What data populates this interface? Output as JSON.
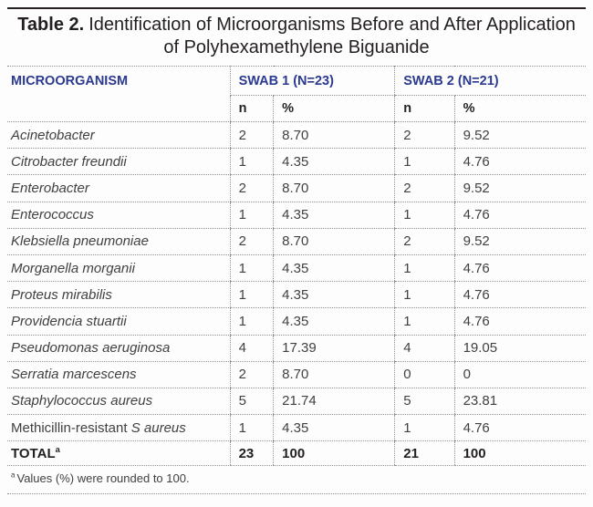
{
  "title": {
    "label": "Table 2.",
    "text": "Identification of Microorganisms Before and After Application of Polyhexamethylene Biguanide"
  },
  "colors": {
    "header_navy": "#2b3990",
    "body_text": "#414042",
    "title_black": "#231f20",
    "border_dotted_gray": "#8f8f8f",
    "background": "#fdfdfd"
  },
  "table": {
    "header": {
      "microorganism": "MICROORGANISM",
      "swab1": "SWAB 1 (N=23)",
      "swab2": "SWAB 2 (N=21)",
      "n": "n",
      "pct": "%"
    },
    "rows": [
      {
        "name_regular": "",
        "name_italic": "Acinetobacter",
        "s1n": "2",
        "s1p": "8.70",
        "s2n": "2",
        "s2p": "9.52"
      },
      {
        "name_regular": "",
        "name_italic": "Citrobacter freundii",
        "s1n": "1",
        "s1p": "4.35",
        "s2n": "1",
        "s2p": "4.76"
      },
      {
        "name_regular": "",
        "name_italic": "Enterobacter",
        "s1n": "2",
        "s1p": "8.70",
        "s2n": "2",
        "s2p": "9.52"
      },
      {
        "name_regular": "",
        "name_italic": "Enterococcus",
        "s1n": "1",
        "s1p": "4.35",
        "s2n": "1",
        "s2p": "4.76"
      },
      {
        "name_regular": "",
        "name_italic": "Klebsiella pneumoniae",
        "s1n": "2",
        "s1p": "8.70",
        "s2n": "2",
        "s2p": "9.52"
      },
      {
        "name_regular": "",
        "name_italic": "Morganella morganii",
        "s1n": "1",
        "s1p": "4.35",
        "s2n": "1",
        "s2p": "4.76"
      },
      {
        "name_regular": "",
        "name_italic": "Proteus mirabilis",
        "s1n": "1",
        "s1p": "4.35",
        "s2n": "1",
        "s2p": "4.76"
      },
      {
        "name_regular": "",
        "name_italic": "Providencia stuartii",
        "s1n": "1",
        "s1p": "4.35",
        "s2n": "1",
        "s2p": "4.76"
      },
      {
        "name_regular": "",
        "name_italic": "Pseudomonas aeruginosa",
        "s1n": "4",
        "s1p": "17.39",
        "s2n": "4",
        "s2p": "19.05"
      },
      {
        "name_regular": "",
        "name_italic": "Serratia marcescens",
        "s1n": "2",
        "s1p": "8.70",
        "s2n": "0",
        "s2p": "0"
      },
      {
        "name_regular": "",
        "name_italic": "Staphylococcus aureus",
        "s1n": "5",
        "s1p": "21.74",
        "s2n": "5",
        "s2p": "23.81"
      },
      {
        "name_regular": "Methicillin-resistant ",
        "name_italic": "S aureus",
        "s1n": "1",
        "s1p": "4.35",
        "s2n": "1",
        "s2p": "4.76"
      }
    ],
    "total": {
      "label": "TOTAL",
      "sup": "a",
      "s1n": "23",
      "s1p": "100",
      "s2n": "21",
      "s2p": "100"
    }
  },
  "footnote": {
    "sup": "a",
    "text": "Values (%) were rounded to 100."
  }
}
